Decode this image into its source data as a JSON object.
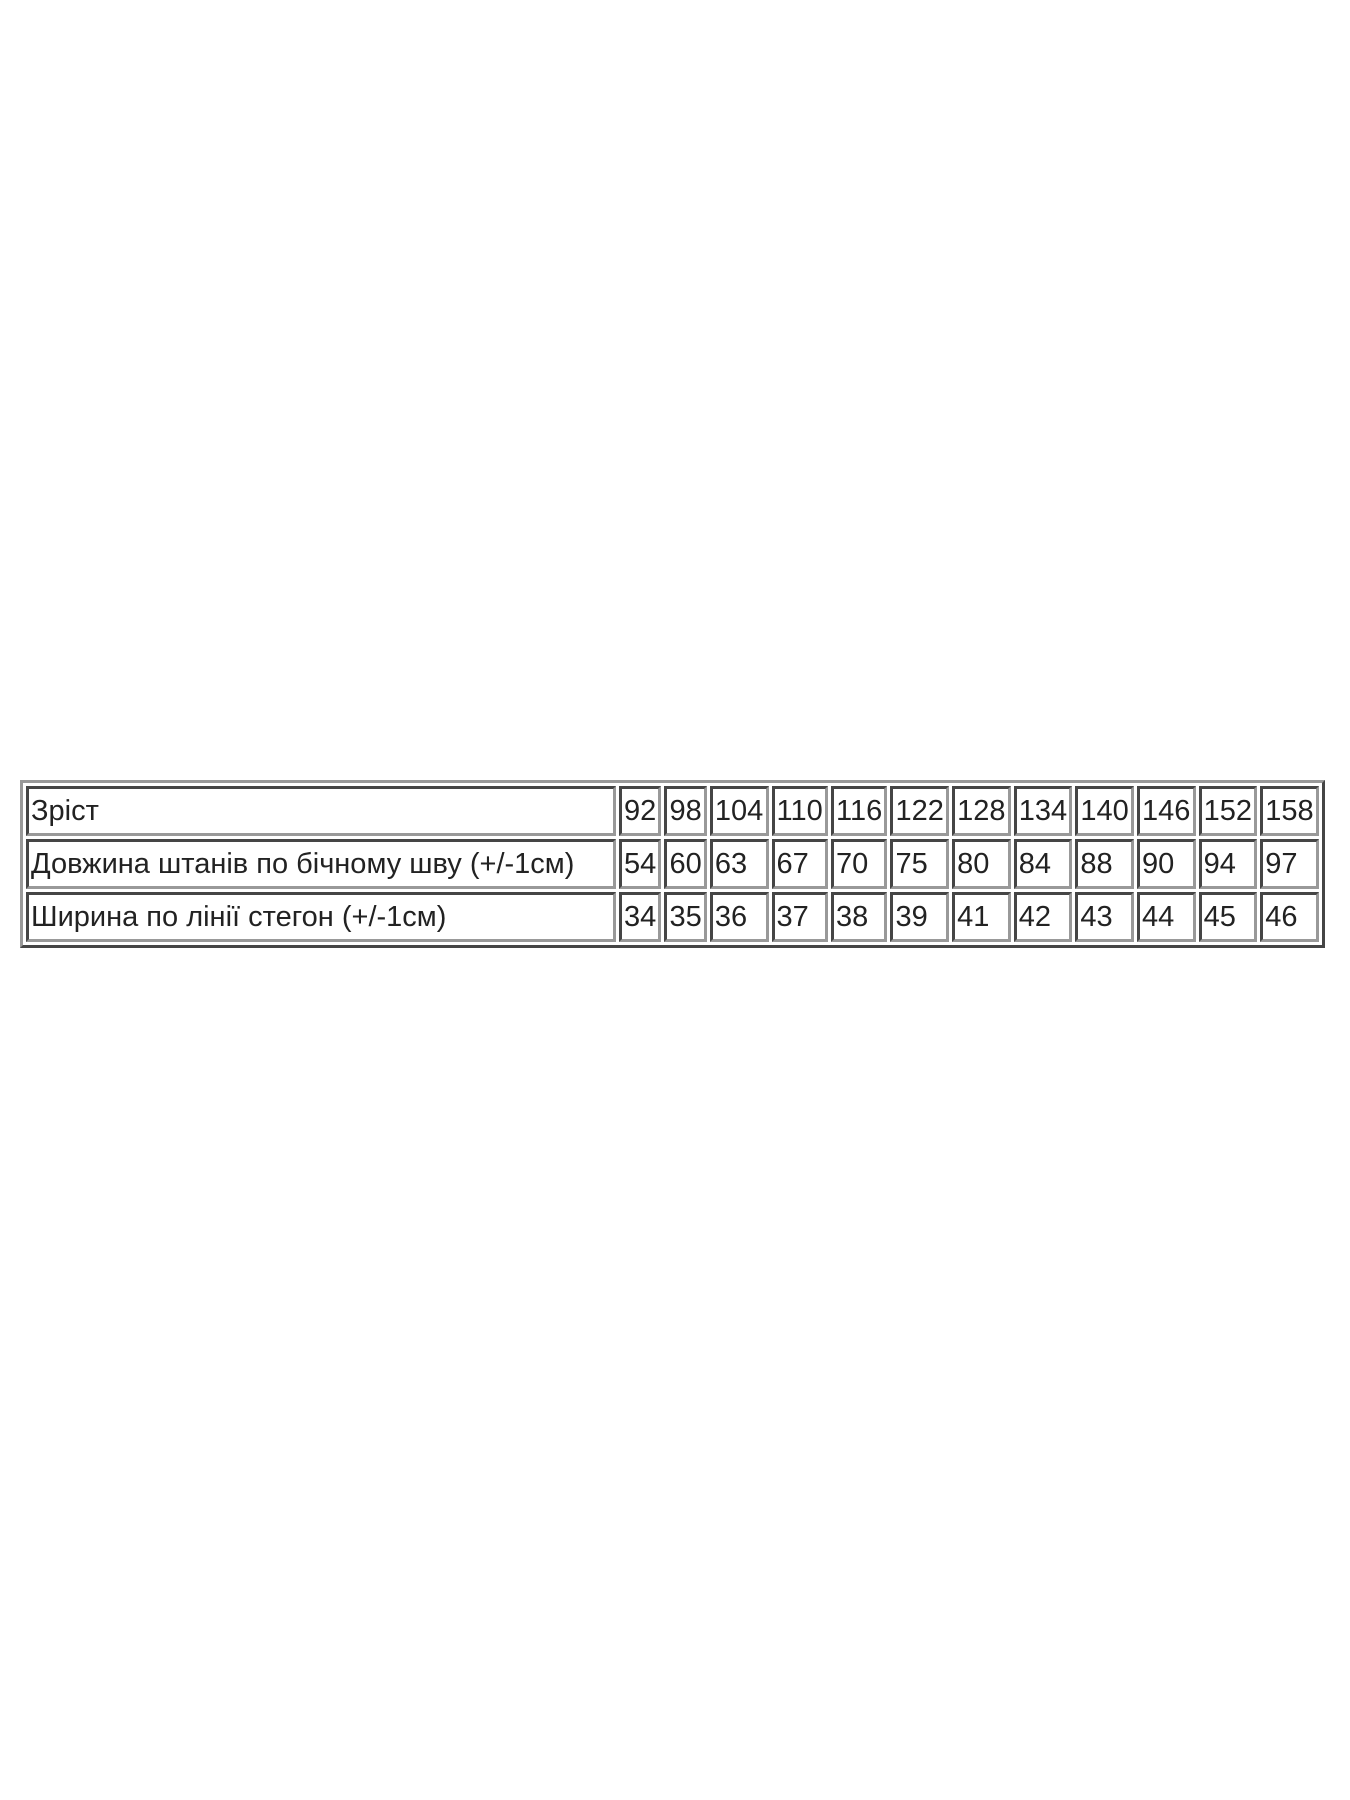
{
  "table": {
    "rows": [
      {
        "label": "Зріст",
        "values": [
          "92",
          "98",
          "104",
          "110",
          "116",
          "122",
          "128",
          "134",
          "140",
          "146",
          "152",
          "158"
        ]
      },
      {
        "label": "Довжина штанів по бічному шву (+/-1см)",
        "values": [
          "54",
          "60",
          "63",
          "67",
          "70",
          "75",
          "80",
          "84",
          "88",
          "90",
          "94",
          "97"
        ]
      },
      {
        "label": "Ширина по лінії стегон (+/-1см)",
        "values": [
          "34",
          "35",
          "36",
          "37",
          "38",
          "39",
          "41",
          "42",
          "43",
          "44",
          "45",
          "46"
        ]
      }
    ]
  }
}
